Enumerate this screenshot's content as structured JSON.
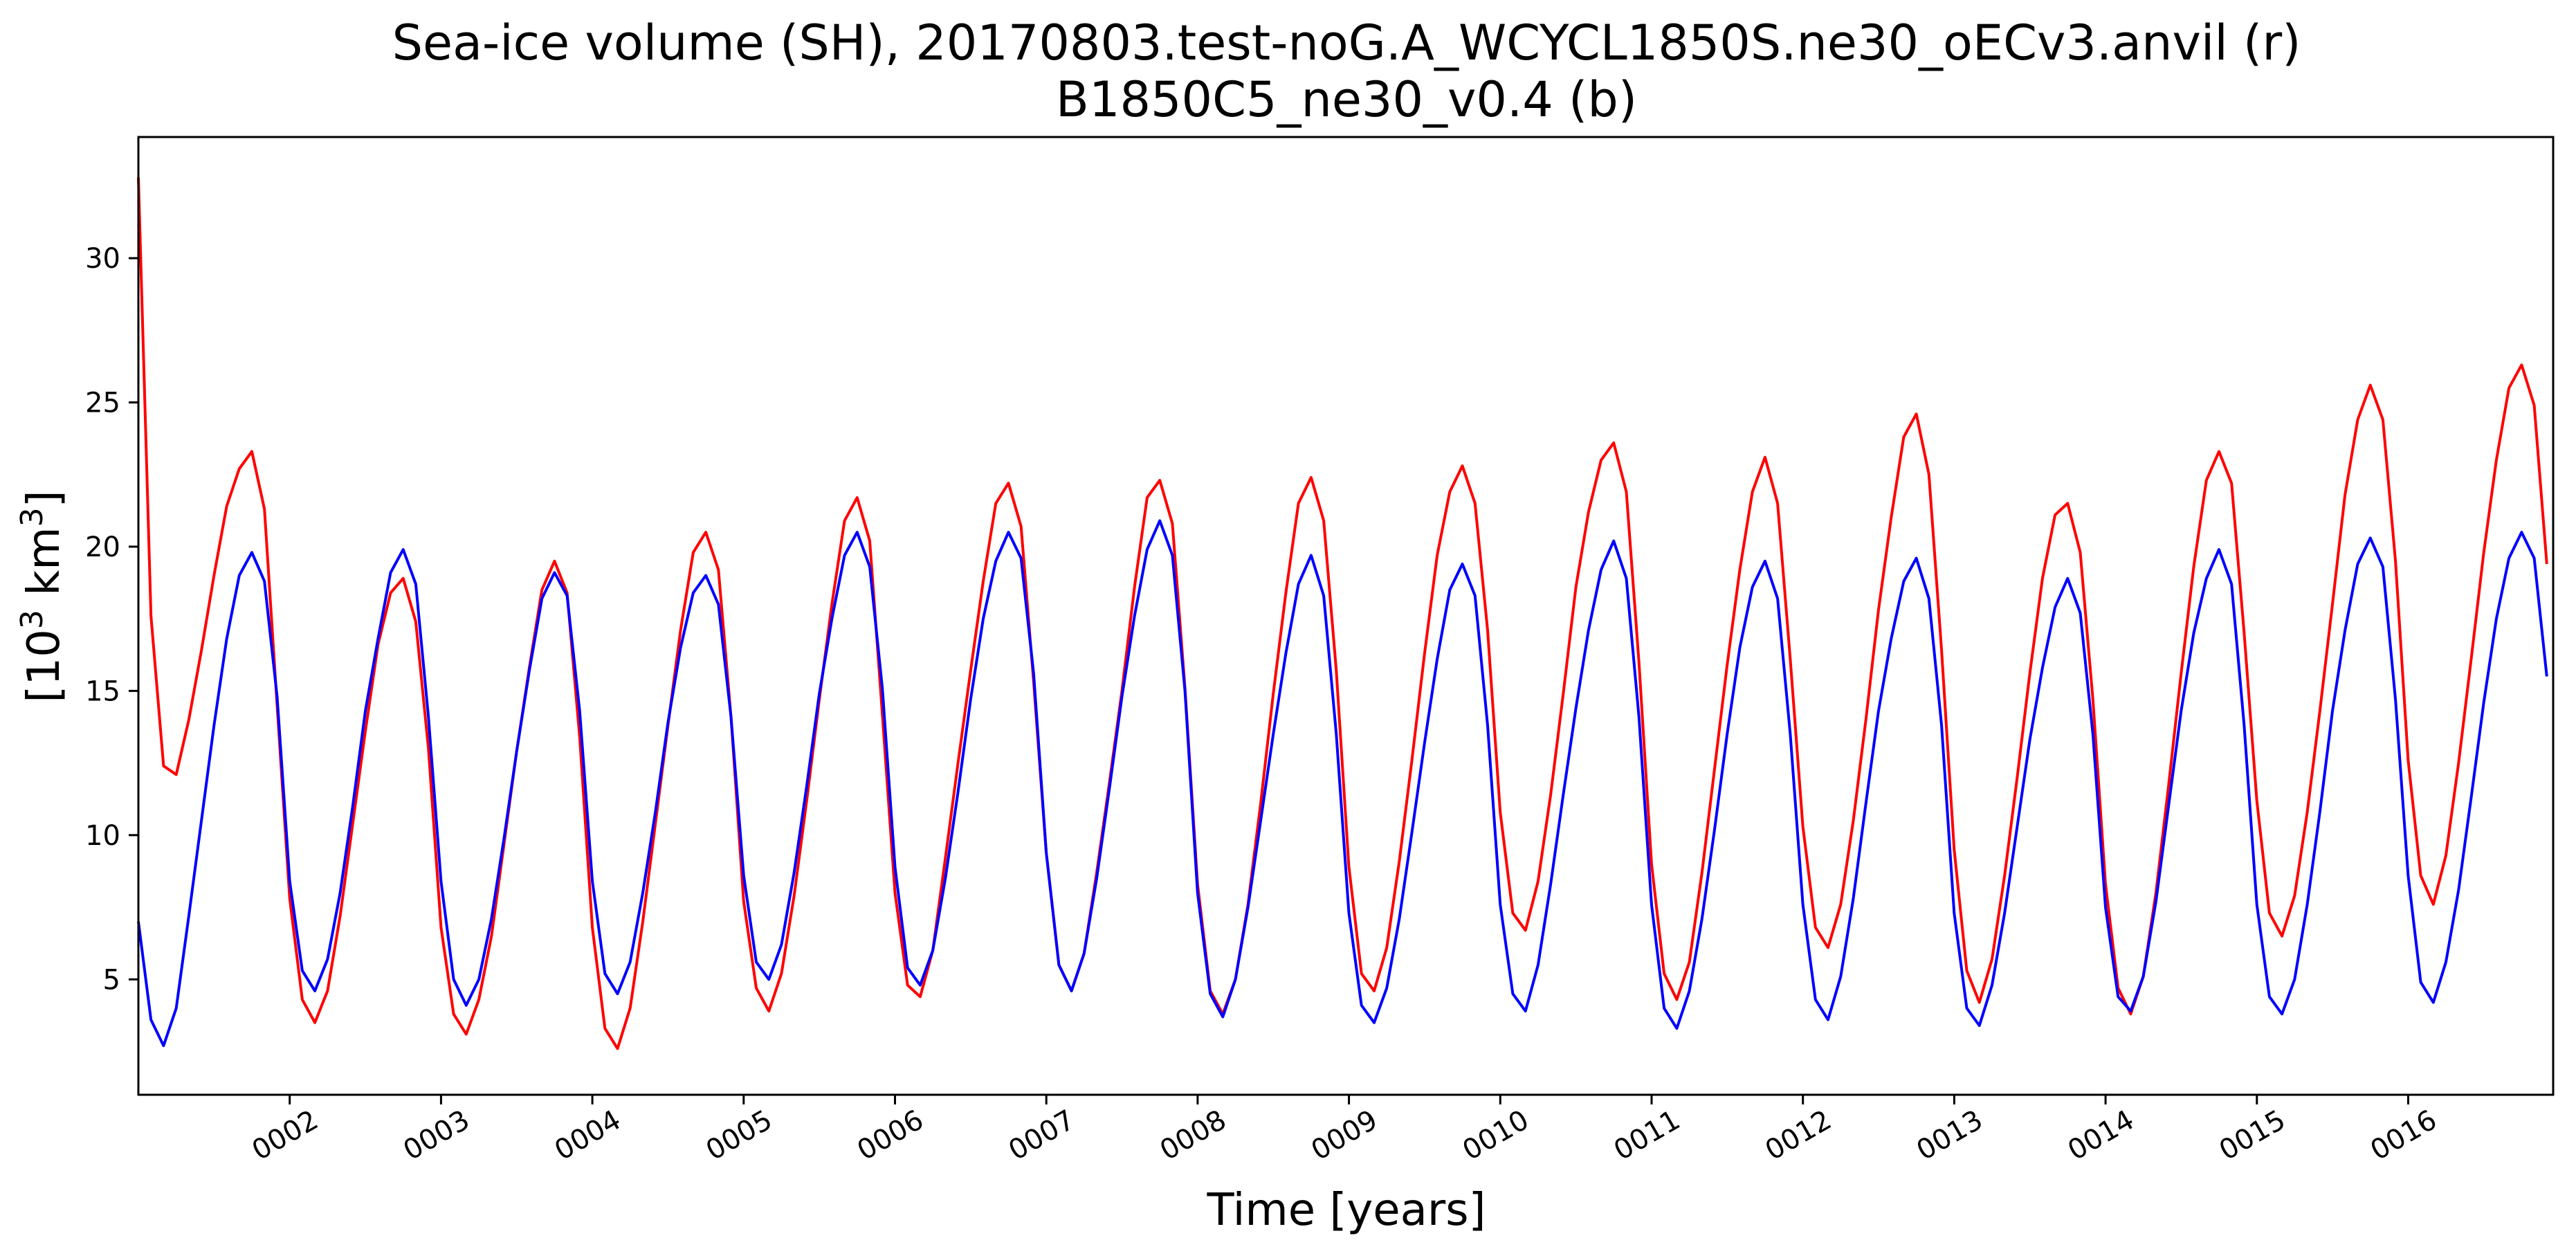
{
  "chart_data": {
    "type": "line",
    "title_line1": "Sea-ice volume (SH), 20170803.test-noG.A_WCYCL1850S.ne30_oECv3.anvil (r)",
    "title_line2": "B1850C5_ne30_v0.4 (b)",
    "xlabel": "Time [years]",
    "ylabel": {
      "base": "[10",
      "exp1": "3",
      "mid": " km",
      "exp2": "3",
      "end": "]"
    },
    "xlim": [
      1.0,
      16.958
    ],
    "ylim": [
      1.0,
      34.2
    ],
    "grid": false,
    "x_ticks": [
      {
        "value": 2,
        "label": "0002"
      },
      {
        "value": 3,
        "label": "0003"
      },
      {
        "value": 4,
        "label": "0004"
      },
      {
        "value": 5,
        "label": "0005"
      },
      {
        "value": 6,
        "label": "0006"
      },
      {
        "value": 7,
        "label": "0007"
      },
      {
        "value": 8,
        "label": "0008"
      },
      {
        "value": 9,
        "label": "0009"
      },
      {
        "value": 10,
        "label": "0010"
      },
      {
        "value": 11,
        "label": "0011"
      },
      {
        "value": 12,
        "label": "0012"
      },
      {
        "value": 13,
        "label": "0013"
      },
      {
        "value": 14,
        "label": "0014"
      },
      {
        "value": 15,
        "label": "0015"
      },
      {
        "value": 16,
        "label": "0016"
      }
    ],
    "y_ticks": [
      {
        "value": 5,
        "label": "5"
      },
      {
        "value": 10,
        "label": "10"
      },
      {
        "value": 15,
        "label": "15"
      },
      {
        "value": 20,
        "label": "20"
      },
      {
        "value": 25,
        "label": "25"
      },
      {
        "value": 30,
        "label": "30"
      }
    ],
    "x_start": 1.0,
    "x_step": 0.08333,
    "series": [
      {
        "color": "#ff0000",
        "values": [
          32.8,
          17.6,
          12.4,
          12.1,
          14.0,
          16.4,
          19.0,
          21.4,
          22.7,
          23.3,
          21.3,
          14.5,
          7.8,
          4.3,
          3.5,
          4.6,
          7.2,
          10.4,
          13.6,
          16.6,
          18.4,
          18.9,
          17.4,
          13.0,
          6.8,
          3.8,
          3.1,
          4.3,
          6.5,
          9.7,
          12.9,
          15.8,
          18.5,
          19.5,
          18.4,
          13.4,
          6.8,
          3.3,
          2.6,
          4.0,
          7.0,
          10.4,
          13.8,
          17.1,
          19.8,
          20.5,
          19.2,
          14.1,
          7.7,
          4.7,
          3.9,
          5.2,
          7.9,
          11.2,
          14.7,
          18.0,
          20.9,
          21.7,
          20.2,
          14.2,
          8.0,
          4.8,
          4.4,
          6.0,
          9.2,
          12.5,
          15.7,
          18.8,
          21.5,
          22.2,
          20.7,
          15.3,
          9.4,
          5.5,
          4.6,
          5.9,
          8.7,
          11.8,
          15.0,
          18.6,
          21.7,
          22.3,
          20.8,
          15.1,
          8.3,
          4.6,
          3.8,
          5.0,
          7.6,
          11.1,
          14.9,
          18.4,
          21.5,
          22.4,
          20.9,
          15.7,
          8.9,
          5.2,
          4.6,
          6.1,
          9.1,
          12.6,
          16.3,
          19.7,
          21.9,
          22.8,
          21.5,
          17.1,
          10.8,
          7.3,
          6.7,
          8.4,
          11.4,
          14.9,
          18.6,
          21.2,
          23.0,
          23.6,
          21.9,
          16.0,
          9.0,
          5.2,
          4.3,
          5.6,
          8.7,
          12.3,
          15.9,
          19.2,
          21.9,
          23.1,
          21.5,
          16.1,
          10.3,
          6.8,
          6.1,
          7.6,
          10.5,
          14.0,
          17.8,
          21.0,
          23.8,
          24.6,
          22.5,
          16.4,
          9.5,
          5.3,
          4.2,
          5.7,
          8.6,
          12.0,
          15.6,
          18.9,
          21.1,
          21.5,
          19.8,
          14.7,
          8.3,
          4.7,
          3.8,
          5.1,
          8.0,
          11.7,
          15.6,
          19.3,
          22.3,
          23.3,
          22.2,
          17.0,
          11.2,
          7.3,
          6.5,
          7.9,
          10.8,
          14.3,
          18.0,
          21.8,
          24.4,
          25.6,
          24.4,
          19.5,
          12.6,
          8.6,
          7.6,
          9.3,
          12.5,
          16.1,
          19.8,
          23.0,
          25.5,
          26.3,
          24.9,
          19.4
        ]
      },
      {
        "color": "#0000ff",
        "values": [
          7.0,
          3.6,
          2.7,
          4.0,
          7.2,
          10.5,
          13.8,
          16.8,
          19.0,
          19.8,
          18.8,
          14.8,
          8.4,
          5.3,
          4.6,
          5.7,
          8.0,
          11.0,
          14.3,
          16.8,
          19.1,
          19.9,
          18.7,
          14.1,
          8.4,
          5.0,
          4.1,
          5.0,
          7.1,
          9.9,
          12.9,
          15.7,
          18.2,
          19.1,
          18.3,
          14.3,
          8.4,
          5.2,
          4.5,
          5.6,
          8.0,
          10.8,
          13.9,
          16.5,
          18.4,
          19.0,
          18.0,
          14.1,
          8.6,
          5.6,
          5.0,
          6.2,
          8.7,
          11.7,
          14.9,
          17.5,
          19.7,
          20.5,
          19.3,
          15.1,
          8.9,
          5.4,
          4.8,
          6.0,
          8.5,
          11.5,
          14.7,
          17.5,
          19.5,
          20.5,
          19.6,
          15.6,
          9.4,
          5.5,
          4.6,
          5.9,
          8.5,
          11.6,
          14.8,
          17.6,
          19.9,
          20.9,
          19.7,
          15.0,
          8.0,
          4.5,
          3.7,
          5.0,
          7.5,
          10.5,
          13.5,
          16.3,
          18.7,
          19.7,
          18.3,
          13.5,
          7.3,
          4.1,
          3.5,
          4.7,
          7.1,
          10.1,
          13.2,
          16.1,
          18.5,
          19.4,
          18.3,
          13.8,
          7.6,
          4.5,
          3.9,
          5.5,
          8.3,
          11.4,
          14.4,
          17.1,
          19.2,
          20.2,
          18.9,
          14.1,
          7.6,
          4.0,
          3.3,
          4.6,
          7.1,
          10.2,
          13.5,
          16.5,
          18.6,
          19.5,
          18.2,
          13.5,
          7.6,
          4.3,
          3.6,
          5.1,
          7.8,
          11.1,
          14.3,
          16.8,
          18.8,
          19.6,
          18.2,
          13.8,
          7.3,
          4.0,
          3.4,
          4.8,
          7.3,
          10.3,
          13.3,
          15.8,
          17.9,
          18.9,
          17.7,
          13.5,
          7.5,
          4.4,
          3.9,
          5.1,
          7.7,
          11.0,
          14.3,
          17.0,
          18.9,
          19.9,
          18.7,
          13.8,
          7.6,
          4.4,
          3.8,
          5.0,
          7.6,
          10.8,
          14.3,
          17.1,
          19.4,
          20.3,
          19.3,
          14.7,
          8.6,
          4.9,
          4.2,
          5.6,
          8.1,
          11.3,
          14.6,
          17.5,
          19.6,
          20.5,
          19.6,
          15.5
        ]
      }
    ]
  }
}
